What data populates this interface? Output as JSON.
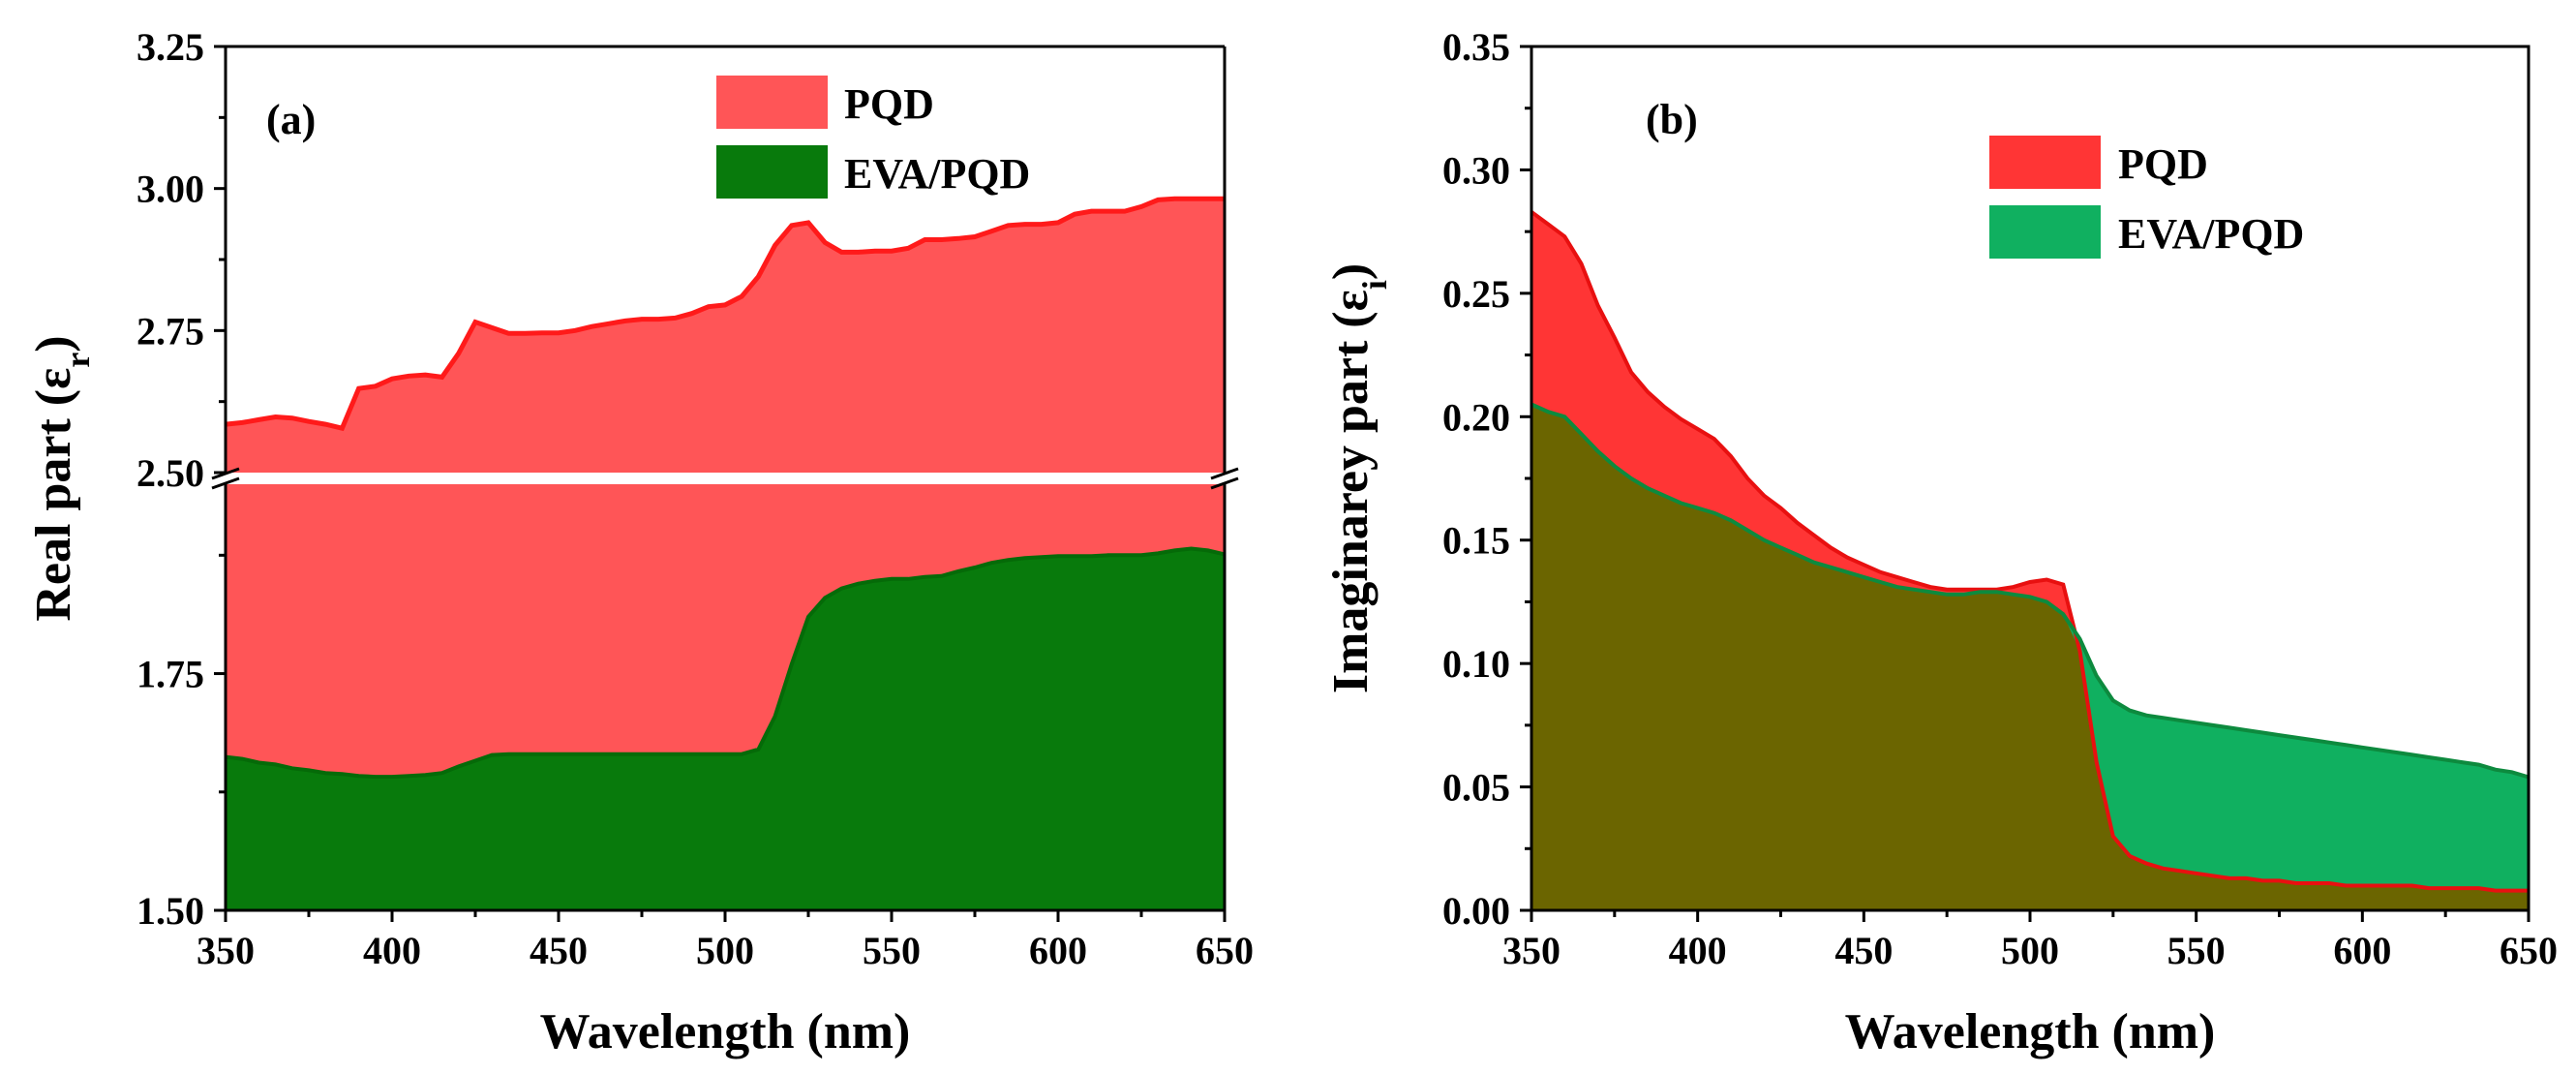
{
  "chart_data": [
    {
      "type": "area",
      "panel_label": "(a)",
      "xlabel": "Wavelength (nm)",
      "ylabel_main": "Real part (ε",
      "ylabel_sub": "r",
      "ylabel_close": ")",
      "xlim": [
        350,
        650
      ],
      "x_ticks": [
        "350",
        "400",
        "450",
        "500",
        "550",
        "600",
        "650"
      ],
      "y_axis_break": true,
      "upper_ylim": [
        2.5,
        3.25
      ],
      "upper_y_ticks": [
        "2.50",
        "2.75",
        "3.00",
        "3.25"
      ],
      "lower_ylim": [
        1.5,
        1.95
      ],
      "lower_y_ticks": [
        "1.50",
        "1.75"
      ],
      "legend_position": "top-right",
      "series": [
        {
          "name": "PQD",
          "color": "#ff5557",
          "x": [
            350,
            355,
            360,
            365,
            370,
            375,
            380,
            385,
            390,
            395,
            400,
            405,
            410,
            415,
            420,
            425,
            430,
            435,
            440,
            445,
            450,
            455,
            460,
            465,
            470,
            475,
            480,
            485,
            490,
            495,
            500,
            505,
            510,
            515,
            520,
            525,
            530,
            535,
            540,
            545,
            550,
            555,
            560,
            565,
            570,
            575,
            580,
            585,
            590,
            595,
            600,
            605,
            610,
            615,
            620,
            625,
            630,
            635,
            640,
            645,
            650
          ],
          "values": [
            2.585,
            2.588,
            2.593,
            2.598,
            2.596,
            2.59,
            2.585,
            2.578,
            2.648,
            2.652,
            2.665,
            2.67,
            2.672,
            2.668,
            2.71,
            2.765,
            2.755,
            2.745,
            2.745,
            2.746,
            2.746,
            2.75,
            2.757,
            2.762,
            2.767,
            2.77,
            2.77,
            2.772,
            2.78,
            2.792,
            2.795,
            2.81,
            2.845,
            2.9,
            2.935,
            2.94,
            2.905,
            2.888,
            2.888,
            2.89,
            2.89,
            2.895,
            2.91,
            2.91,
            2.912,
            2.915,
            2.925,
            2.935,
            2.937,
            2.937,
            2.94,
            2.955,
            2.96,
            2.96,
            2.96,
            2.968,
            2.98,
            2.982,
            2.982,
            2.982,
            2.982
          ]
        },
        {
          "name": "EVA/PQD",
          "color": "#087a0c",
          "x": [
            350,
            355,
            360,
            365,
            370,
            375,
            380,
            385,
            390,
            395,
            400,
            405,
            410,
            415,
            420,
            425,
            430,
            435,
            440,
            445,
            450,
            455,
            460,
            465,
            470,
            475,
            480,
            485,
            490,
            495,
            500,
            505,
            510,
            515,
            520,
            525,
            530,
            535,
            540,
            545,
            550,
            555,
            560,
            565,
            570,
            575,
            580,
            585,
            590,
            595,
            600,
            605,
            610,
            615,
            620,
            625,
            630,
            635,
            640,
            645,
            650
          ],
          "values": [
            1.662,
            1.66,
            1.656,
            1.654,
            1.65,
            1.648,
            1.645,
            1.644,
            1.642,
            1.641,
            1.641,
            1.642,
            1.643,
            1.645,
            1.652,
            1.658,
            1.664,
            1.665,
            1.665,
            1.665,
            1.665,
            1.665,
            1.665,
            1.665,
            1.665,
            1.665,
            1.665,
            1.665,
            1.665,
            1.665,
            1.665,
            1.665,
            1.67,
            1.705,
            1.76,
            1.81,
            1.83,
            1.84,
            1.845,
            1.848,
            1.85,
            1.85,
            1.852,
            1.853,
            1.858,
            1.862,
            1.867,
            1.87,
            1.872,
            1.873,
            1.874,
            1.874,
            1.874,
            1.875,
            1.875,
            1.875,
            1.877,
            1.88,
            1.882,
            1.88,
            1.876
          ]
        }
      ]
    },
    {
      "type": "area",
      "panel_label": "(b)",
      "xlabel": "Wavelength (nm)",
      "ylabel_main": "Imaginarey part (ε",
      "ylabel_sub": "i",
      "ylabel_close": ")",
      "xlim": [
        350,
        650
      ],
      "ylim": [
        0,
        0.35
      ],
      "x_ticks": [
        "350",
        "400",
        "450",
        "500",
        "550",
        "600",
        "650"
      ],
      "y_ticks": [
        "0.00",
        "0.05",
        "0.10",
        "0.15",
        "0.20",
        "0.25",
        "0.30",
        "0.35"
      ],
      "legend_position": "top-right",
      "overlap_color": "#6b6500",
      "series": [
        {
          "name": "PQD",
          "color": "#ff3535",
          "x": [
            350,
            355,
            360,
            365,
            370,
            375,
            380,
            385,
            390,
            395,
            400,
            405,
            410,
            415,
            420,
            425,
            430,
            435,
            440,
            445,
            450,
            455,
            460,
            465,
            470,
            475,
            480,
            485,
            490,
            495,
            500,
            505,
            510,
            515,
            520,
            525,
            530,
            535,
            540,
            545,
            550,
            555,
            560,
            565,
            570,
            575,
            580,
            585,
            590,
            595,
            600,
            605,
            610,
            615,
            620,
            625,
            630,
            635,
            640,
            645,
            650
          ],
          "values": [
            0.283,
            0.278,
            0.273,
            0.262,
            0.245,
            0.232,
            0.218,
            0.21,
            0.204,
            0.199,
            0.195,
            0.191,
            0.184,
            0.175,
            0.168,
            0.163,
            0.157,
            0.152,
            0.147,
            0.143,
            0.14,
            0.137,
            0.135,
            0.133,
            0.131,
            0.13,
            0.13,
            0.13,
            0.13,
            0.131,
            0.133,
            0.134,
            0.132,
            0.105,
            0.06,
            0.03,
            0.022,
            0.019,
            0.017,
            0.016,
            0.015,
            0.014,
            0.013,
            0.013,
            0.012,
            0.012,
            0.011,
            0.011,
            0.011,
            0.01,
            0.01,
            0.01,
            0.01,
            0.01,
            0.009,
            0.009,
            0.009,
            0.009,
            0.008,
            0.008,
            0.008
          ]
        },
        {
          "name": "EVA/PQD",
          "color": "#10b060",
          "x": [
            350,
            355,
            360,
            365,
            370,
            375,
            380,
            385,
            390,
            395,
            400,
            405,
            410,
            415,
            420,
            425,
            430,
            435,
            440,
            445,
            450,
            455,
            460,
            465,
            470,
            475,
            480,
            485,
            490,
            495,
            500,
            505,
            510,
            515,
            520,
            525,
            530,
            535,
            540,
            545,
            550,
            555,
            560,
            565,
            570,
            575,
            580,
            585,
            590,
            595,
            600,
            605,
            610,
            615,
            620,
            625,
            630,
            635,
            640,
            645,
            650
          ],
          "values": [
            0.205,
            0.202,
            0.2,
            0.193,
            0.186,
            0.18,
            0.175,
            0.171,
            0.168,
            0.165,
            0.163,
            0.161,
            0.158,
            0.154,
            0.15,
            0.147,
            0.144,
            0.141,
            0.139,
            0.137,
            0.135,
            0.133,
            0.131,
            0.13,
            0.129,
            0.128,
            0.128,
            0.129,
            0.129,
            0.128,
            0.127,
            0.125,
            0.12,
            0.11,
            0.095,
            0.085,
            0.081,
            0.079,
            0.078,
            0.077,
            0.076,
            0.075,
            0.074,
            0.073,
            0.072,
            0.071,
            0.07,
            0.069,
            0.068,
            0.067,
            0.066,
            0.065,
            0.064,
            0.063,
            0.062,
            0.061,
            0.06,
            0.059,
            0.057,
            0.056,
            0.054
          ]
        }
      ]
    }
  ]
}
